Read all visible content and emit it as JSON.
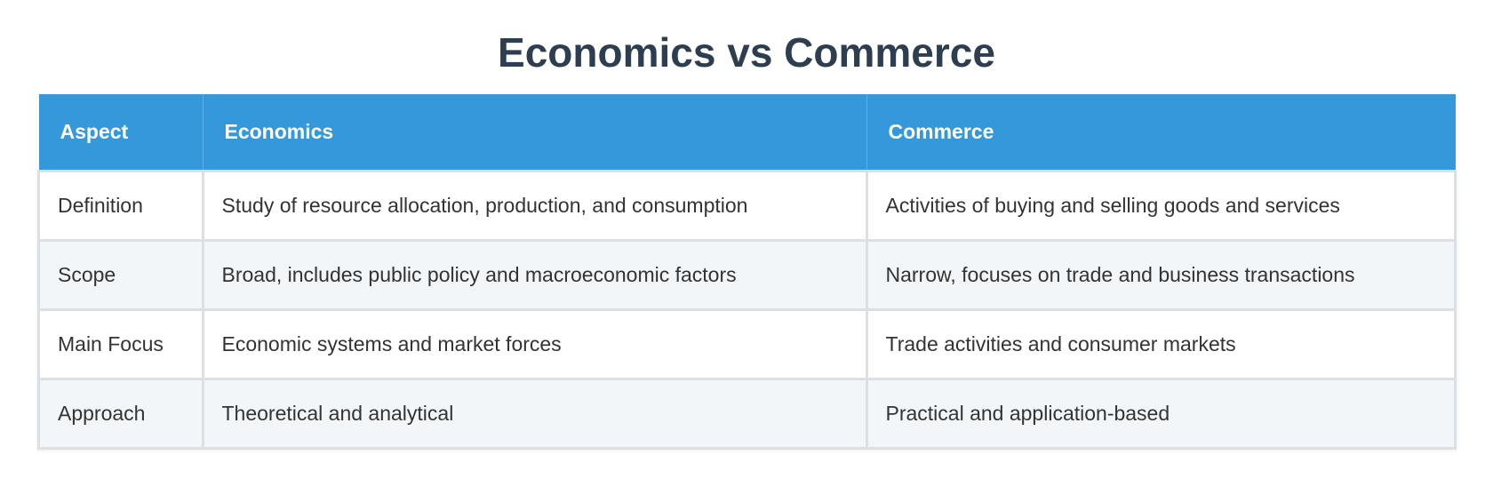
{
  "title": "Economics vs Commerce",
  "colors": {
    "header_bg": "#3498db",
    "title": "#2c3e50",
    "alt_row": "#f2f6f9"
  },
  "table": {
    "headers": [
      "Aspect",
      "Economics",
      "Commerce"
    ],
    "rows": [
      [
        "Definition",
        "Study of resource allocation, production, and consumption",
        "Activities of buying and selling goods and services"
      ],
      [
        "Scope",
        "Broad, includes public policy and macroeconomic factors",
        "Narrow, focuses on trade and business transactions"
      ],
      [
        "Main Focus",
        "Economic systems and market forces",
        "Trade activities and consumer markets"
      ],
      [
        "Approach",
        "Theoretical and analytical",
        "Practical and application-based"
      ]
    ]
  }
}
